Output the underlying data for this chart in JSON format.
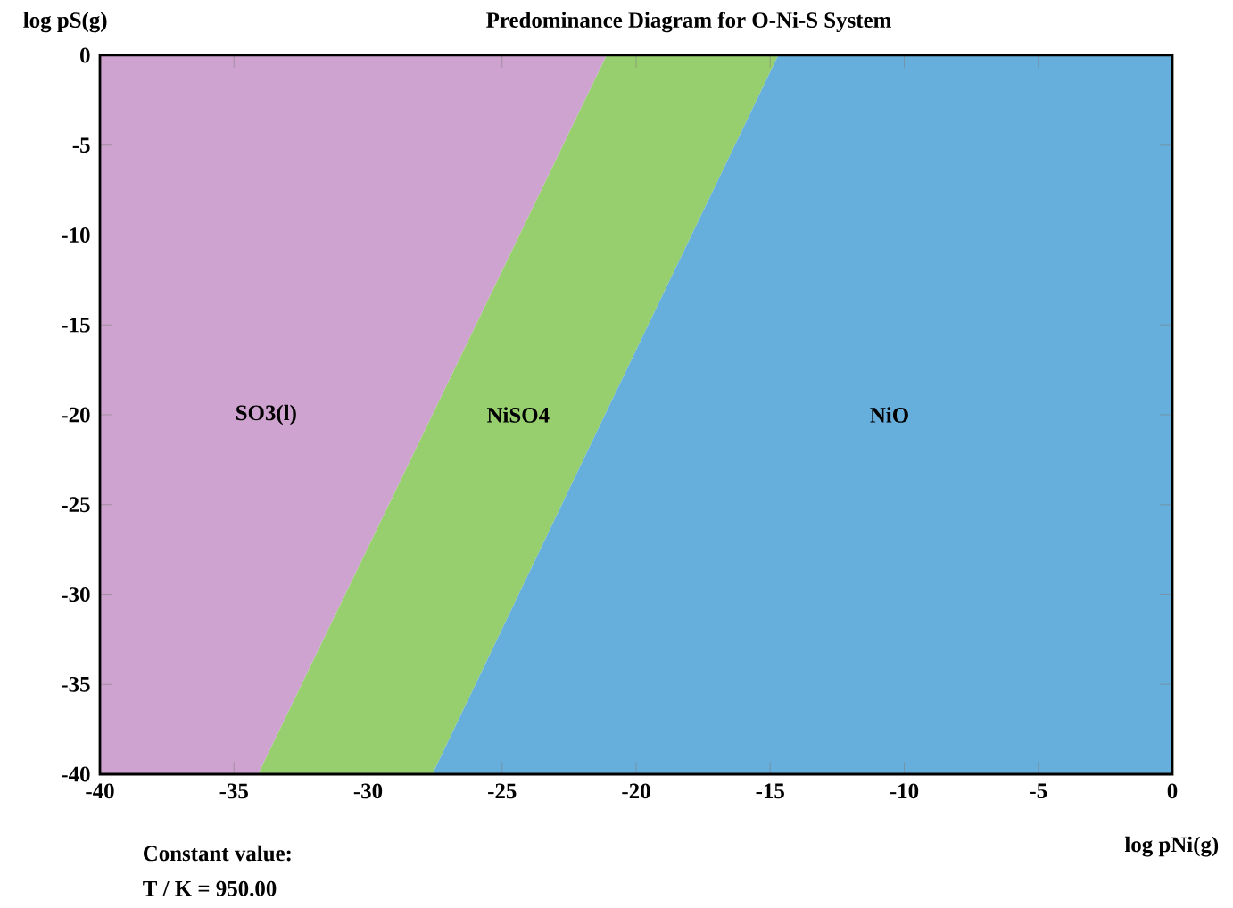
{
  "chart_data": {
    "type": "area",
    "title": "Predominance Diagram for O-Ni-S System",
    "xlabel": "log pNi(g)",
    "ylabel": "log pS(g)",
    "xlim": [
      -40,
      0
    ],
    "ylim": [
      -40,
      0
    ],
    "xticks": [
      -40,
      -35,
      -30,
      -25,
      -20,
      -15,
      -10,
      -5,
      0
    ],
    "yticks": [
      -40,
      -35,
      -30,
      -25,
      -20,
      -15,
      -10,
      -5,
      0
    ],
    "stacked": true,
    "x": [
      -40,
      -34.1,
      -27.6,
      -21.1,
      -14.7,
      0
    ],
    "series": [
      {
        "name": "SO3(l)",
        "color": "#cfa3cf",
        "values": [
          -40,
          -40,
          -20,
          0,
          null,
          null
        ]
      },
      {
        "name": "NiSO4",
        "color": "#97cf6e",
        "values": [
          null,
          0,
          -20,
          -19.8,
          0,
          null
        ]
      },
      {
        "name": "NiO",
        "color": "#66aedb",
        "values": [
          null,
          null,
          0,
          -20.2,
          -40,
          -40
        ]
      }
    ],
    "annotations": [
      "Constant value:",
      "T / K = 950.00"
    ]
  }
}
